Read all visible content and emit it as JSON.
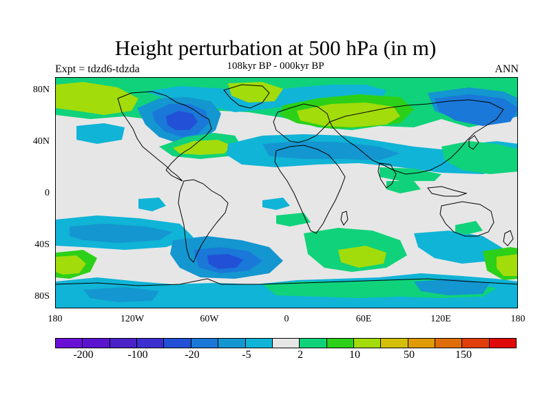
{
  "title": "Height perturbation at 500 hPa (in m)",
  "subtitle": "108kyr BP - 000kyr BP",
  "experiment": "Expt = tdzd6-tdzda",
  "season": "ANN",
  "lat_labels": [
    "80N",
    "40N",
    "0",
    "40S",
    "80S"
  ],
  "lon_labels": [
    "180",
    "120W",
    "60W",
    "0",
    "60E",
    "120E",
    "180"
  ],
  "colorbar": {
    "colors": [
      "#6a10d6",
      "#5a14d0",
      "#4b22c8",
      "#3b2fd0",
      "#2250d6",
      "#1a78d8",
      "#1496d0",
      "#10b4d6",
      "#e6e6e6",
      "#10d27a",
      "#2cd018",
      "#a2dc0a",
      "#d4c008",
      "#e09a04",
      "#e06e08",
      "#e03e0a",
      "#e00a0a"
    ],
    "labels": [
      "-200",
      "-100",
      "-20",
      "-5",
      "2",
      "10",
      "50",
      "150"
    ]
  },
  "palette": {
    "neutral": "#e6e6e6",
    "blue_light": "#10b4d6",
    "blue_mid": "#1496d0",
    "blue_deep": "#1a78d8",
    "blue_core": "#2250d6",
    "green": "#10d27a",
    "green_bright": "#2cd018",
    "yellow_green": "#a2dc0a",
    "coastline": "#000000"
  }
}
